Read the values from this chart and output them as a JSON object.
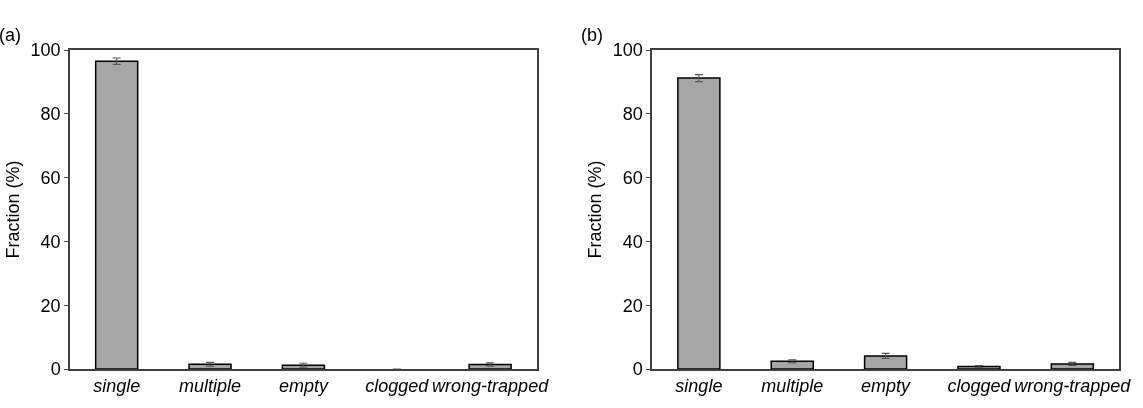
{
  "chart_data": [
    {
      "type": "bar",
      "title": "(a)",
      "ylabel": "Fraction (%)",
      "categories": [
        "single",
        "multiple",
        "empty",
        "clogged",
        "wrong-trapped"
      ],
      "values": [
        96.5,
        1.5,
        1.2,
        0,
        1.4
      ],
      "errors": [
        1,
        0.6,
        0.6,
        null,
        0.5
      ],
      "color": "#a6a6a6",
      "ylim": [
        0,
        100
      ],
      "yticks": [
        0,
        20,
        40,
        60,
        80,
        100
      ]
    },
    {
      "type": "bar",
      "title": "(b)",
      "ylabel": "Fraction (%)",
      "categories": [
        "single",
        "multiple",
        "empty",
        "clogged",
        "wrong-trapped"
      ],
      "values": [
        91.2,
        2.4,
        4.1,
        0.8,
        1.6
      ],
      "errors": [
        1.1,
        0.5,
        0.8,
        0.3,
        0.5
      ],
      "color": "#a6a6a6",
      "ylim": [
        0,
        100
      ],
      "yticks": [
        0,
        20,
        40,
        60,
        80,
        100
      ]
    }
  ]
}
